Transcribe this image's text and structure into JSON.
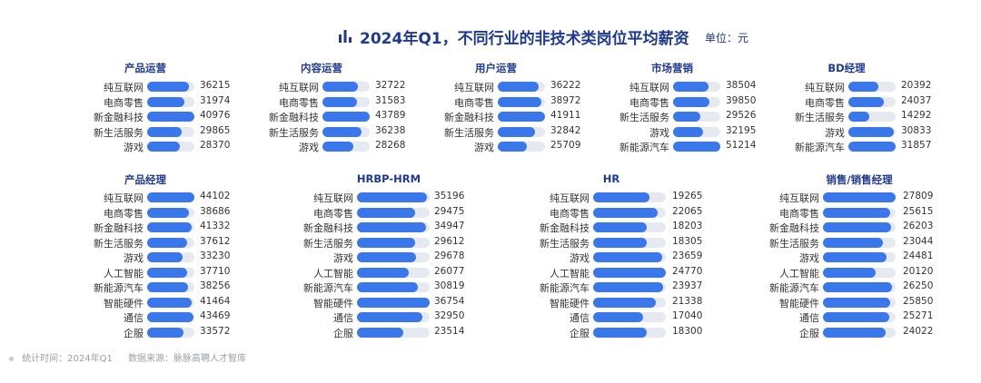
{
  "header": {
    "title": "2024年Q1，不同行业的非技术类岗位平均薪资",
    "unit": "单位：元",
    "icon": "bar-chart-icon",
    "accent_color": "#1f3a8a",
    "bar_color": "#3a77ea",
    "track_color": "#e6eaf0"
  },
  "footer": {
    "stat_time": "统计时间：2024年Q1",
    "source": "数据来源：脉脉高聘人才智库"
  },
  "chart_data": [
    {
      "type": "bar",
      "title": "产品运营",
      "categories": [
        "纯互联网",
        "电商零售",
        "新金融科技",
        "新生活服务",
        "游戏"
      ],
      "values": [
        36215,
        31974,
        40976,
        29865,
        28370
      ]
    },
    {
      "type": "bar",
      "title": "内容运营",
      "categories": [
        "纯互联网",
        "电商零售",
        "新金融科技",
        "新生活服务",
        "游戏"
      ],
      "values": [
        32722,
        31583,
        43789,
        36238,
        28268
      ]
    },
    {
      "type": "bar",
      "title": "用户运营",
      "categories": [
        "纯互联网",
        "电商零售",
        "新金融科技",
        "新生活服务",
        "游戏"
      ],
      "values": [
        36222,
        38972,
        41911,
        32842,
        25709
      ]
    },
    {
      "type": "bar",
      "title": "市场营销",
      "categories": [
        "纯互联网",
        "电商零售",
        "新生活服务",
        "游戏",
        "新能源汽车"
      ],
      "values": [
        38504,
        39850,
        29526,
        32195,
        51214
      ]
    },
    {
      "type": "bar",
      "title": "BD经理",
      "categories": [
        "纯互联网",
        "电商零售",
        "新生活服务",
        "游戏",
        "新能源汽车"
      ],
      "values": [
        20392,
        24037,
        14292,
        30833,
        31857
      ]
    },
    {
      "type": "bar",
      "title": "产品经理",
      "categories": [
        "纯互联网",
        "电商零售",
        "新金融科技",
        "新生活服务",
        "游戏",
        "人工智能",
        "新能源汽车",
        "智能硬件",
        "通信",
        "企服"
      ],
      "values": [
        44102,
        38686,
        41332,
        37612,
        33230,
        37710,
        38256,
        41464,
        43469,
        33572
      ]
    },
    {
      "type": "bar",
      "title": "HRBP-HRM",
      "categories": [
        "纯互联网",
        "电商零售",
        "新金融科技",
        "新生活服务",
        "游戏",
        "人工智能",
        "新能源汽车",
        "智能硬件",
        "通信",
        "企服"
      ],
      "values": [
        35196,
        29475,
        34947,
        29612,
        29678,
        26077,
        30819,
        36754,
        32950,
        23514
      ]
    },
    {
      "type": "bar",
      "title": "HR",
      "categories": [
        "纯互联网",
        "电商零售",
        "新金融科技",
        "新生活服务",
        "游戏",
        "人工智能",
        "新能源汽车",
        "智能硬件",
        "通信",
        "企服"
      ],
      "values": [
        19265,
        22065,
        18203,
        18305,
        23659,
        24770,
        23937,
        21338,
        17040,
        18300
      ]
    },
    {
      "type": "bar",
      "title": "销售/销售经理",
      "categories": [
        "纯互联网",
        "电商零售",
        "新金融科技",
        "新生活服务",
        "游戏",
        "人工智能",
        "新能源汽车",
        "智能硬件",
        "通信",
        "企服"
      ],
      "values": [
        27809,
        25615,
        26203,
        23044,
        24481,
        20120,
        26250,
        25850,
        25271,
        24022
      ]
    }
  ]
}
